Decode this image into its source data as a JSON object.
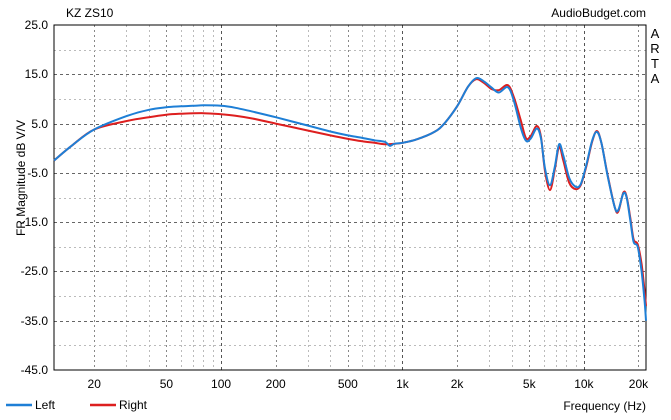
{
  "chart_data": {
    "type": "line",
    "title": "KZ ZS10",
    "watermark": "AudioBudget.com",
    "side_label": "ARTA",
    "xlabel": "Frequency (Hz)",
    "ylabel": "FR Magnitude dB V/V",
    "xscale": "log",
    "xlim": [
      12,
      22000
    ],
    "ylim": [
      -45,
      25
    ],
    "grid": true,
    "legend": "bottom-left",
    "y_ticks": [
      {
        "value": 25,
        "label": "25.0"
      },
      {
        "value": 15,
        "label": "15.0"
      },
      {
        "value": 5,
        "label": "5.0"
      },
      {
        "value": -5,
        "label": "-5.0"
      },
      {
        "value": -15,
        "label": "-15.0"
      },
      {
        "value": -25,
        "label": "-25.0"
      },
      {
        "value": -35,
        "label": "-35.0"
      },
      {
        "value": -45,
        "label": "-45.0"
      }
    ],
    "x_ticks": [
      {
        "value": 20,
        "label": "20"
      },
      {
        "value": 50,
        "label": "50"
      },
      {
        "value": 100,
        "label": "100"
      },
      {
        "value": 200,
        "label": "200"
      },
      {
        "value": 500,
        "label": "500"
      },
      {
        "value": 1000,
        "label": "1k"
      },
      {
        "value": 2000,
        "label": "2k"
      },
      {
        "value": 5000,
        "label": "5k"
      },
      {
        "value": 10000,
        "label": "10k"
      },
      {
        "value": 20000,
        "label": "20k"
      }
    ],
    "series": [
      {
        "name": "Left",
        "color": "#1e7fd6",
        "points": [
          [
            12,
            -2.5
          ],
          [
            15,
            0.5
          ],
          [
            20,
            3.8
          ],
          [
            30,
            6.5
          ],
          [
            40,
            7.8
          ],
          [
            50,
            8.3
          ],
          [
            60,
            8.5
          ],
          [
            70,
            8.6
          ],
          [
            80,
            8.7
          ],
          [
            100,
            8.6
          ],
          [
            120,
            8.2
          ],
          [
            150,
            7.4
          ],
          [
            200,
            6.3
          ],
          [
            300,
            4.6
          ],
          [
            400,
            3.4
          ],
          [
            500,
            2.6
          ],
          [
            600,
            2.1
          ],
          [
            700,
            1.6
          ],
          [
            800,
            1.3
          ],
          [
            850,
            0.5
          ],
          [
            900,
            0.9
          ],
          [
            1000,
            1.1
          ],
          [
            1200,
            1.8
          ],
          [
            1500,
            3.3
          ],
          [
            1700,
            5.0
          ],
          [
            2000,
            8.5
          ],
          [
            2300,
            12.5
          ],
          [
            2550,
            14.2
          ],
          [
            2800,
            13.6
          ],
          [
            3100,
            12.3
          ],
          [
            3400,
            11.3
          ],
          [
            3800,
            12.4
          ],
          [
            4100,
            9.8
          ],
          [
            4500,
            4.0
          ],
          [
            4800,
            1.5
          ],
          [
            5100,
            2.0
          ],
          [
            5500,
            4.0
          ],
          [
            5800,
            2.0
          ],
          [
            6100,
            -4.0
          ],
          [
            6500,
            -7.5
          ],
          [
            6900,
            -4.0
          ],
          [
            7300,
            0.8
          ],
          [
            7700,
            -1.5
          ],
          [
            8300,
            -6.0
          ],
          [
            9000,
            -7.8
          ],
          [
            9600,
            -7.3
          ],
          [
            10300,
            -3.5
          ],
          [
            11100,
            1.5
          ],
          [
            11800,
            3.3
          ],
          [
            12500,
            1.0
          ],
          [
            13500,
            -5.5
          ],
          [
            14800,
            -12.0
          ],
          [
            15500,
            -12.5
          ],
          [
            16500,
            -9.2
          ],
          [
            17200,
            -10.0
          ],
          [
            18000,
            -14.5
          ],
          [
            18800,
            -19.0
          ],
          [
            19800,
            -20.0
          ],
          [
            20800,
            -25.0
          ],
          [
            21600,
            -31.0
          ],
          [
            22000,
            -35.0
          ]
        ]
      },
      {
        "name": "Right",
        "color": "#dd1f1f",
        "points": [
          [
            12,
            -2.5
          ],
          [
            15,
            0.5
          ],
          [
            20,
            3.8
          ],
          [
            30,
            5.5
          ],
          [
            40,
            6.3
          ],
          [
            50,
            6.8
          ],
          [
            60,
            7.0
          ],
          [
            80,
            7.1
          ],
          [
            100,
            6.9
          ],
          [
            120,
            6.6
          ],
          [
            150,
            6.0
          ],
          [
            200,
            5.0
          ],
          [
            300,
            3.6
          ],
          [
            400,
            2.6
          ],
          [
            500,
            1.9
          ],
          [
            600,
            1.4
          ],
          [
            700,
            1.1
          ],
          [
            800,
            0.8
          ],
          [
            900,
            0.9
          ],
          [
            1000,
            1.1
          ],
          [
            1200,
            1.8
          ],
          [
            1500,
            3.3
          ],
          [
            1700,
            5.0
          ],
          [
            2000,
            8.5
          ],
          [
            2300,
            12.5
          ],
          [
            2550,
            14.0
          ],
          [
            2800,
            13.3
          ],
          [
            3100,
            12.0
          ],
          [
            3400,
            11.8
          ],
          [
            3800,
            12.8
          ],
          [
            4100,
            10.5
          ],
          [
            4500,
            5.5
          ],
          [
            4800,
            2.0
          ],
          [
            5100,
            2.5
          ],
          [
            5500,
            4.5
          ],
          [
            5800,
            2.3
          ],
          [
            6100,
            -4.5
          ],
          [
            6500,
            -8.5
          ],
          [
            6900,
            -4.5
          ],
          [
            7300,
            0.3
          ],
          [
            7700,
            -2.5
          ],
          [
            8300,
            -7.0
          ],
          [
            9000,
            -8.3
          ],
          [
            9600,
            -7.5
          ],
          [
            10300,
            -3.8
          ],
          [
            11100,
            1.3
          ],
          [
            11800,
            3.5
          ],
          [
            12500,
            1.0
          ],
          [
            13500,
            -5.3
          ],
          [
            14800,
            -12.0
          ],
          [
            15500,
            -12.8
          ],
          [
            16500,
            -9.0
          ],
          [
            17200,
            -9.8
          ],
          [
            18000,
            -14.0
          ],
          [
            18800,
            -18.5
          ],
          [
            19800,
            -19.5
          ],
          [
            20800,
            -23.5
          ],
          [
            21600,
            -29.0
          ],
          [
            22000,
            -32.0
          ]
        ]
      }
    ]
  }
}
